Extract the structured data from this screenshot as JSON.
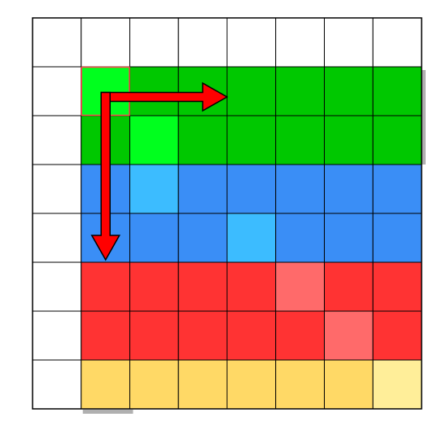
{
  "grid": {
    "rows": 8,
    "cols": 8,
    "cells": [
      [
        "white",
        "white",
        "white",
        "white",
        "white",
        "white",
        "white",
        "white"
      ],
      [
        "white",
        "green-bright",
        "green",
        "green",
        "green",
        "green",
        "green",
        "green"
      ],
      [
        "white",
        "green",
        "green-bright",
        "green",
        "green",
        "green",
        "green",
        "green"
      ],
      [
        "white",
        "blue",
        "blue-light",
        "blue",
        "blue",
        "blue",
        "blue",
        "blue"
      ],
      [
        "white",
        "blue",
        "blue",
        "blue",
        "blue-light",
        "blue",
        "blue",
        "blue"
      ],
      [
        "white",
        "red",
        "red",
        "red",
        "red",
        "red-light",
        "red",
        "red"
      ],
      [
        "white",
        "red",
        "red",
        "red",
        "red",
        "red",
        "red-light",
        "red"
      ],
      [
        "white",
        "yellow",
        "yellow",
        "yellow",
        "yellow",
        "yellow",
        "yellow",
        "yellow-light"
      ]
    ]
  },
  "palette": {
    "white": "#ffffff",
    "green": "#00c800",
    "green-bright": "#00ff1e",
    "blue": "#3a8ef6",
    "blue-light": "#3cbcff",
    "red": "#ff3333",
    "red-light": "#ff6a6a",
    "yellow": "#ffd966",
    "yellow-light": "#ffee99",
    "grid_line": "#000000",
    "arrow": "#ff0000",
    "shadow": "#b0b0b0",
    "highlight_border": "#ff4d4d"
  },
  "arrows": [
    {
      "name": "arrow-right",
      "direction": "right",
      "start_cell": [
        1,
        1
      ],
      "end_cell": [
        1,
        4
      ]
    },
    {
      "name": "arrow-down",
      "direction": "down",
      "start_cell": [
        1,
        1
      ],
      "end_cell": [
        4,
        1
      ]
    }
  ],
  "highlighted_cell": [
    1,
    1
  ]
}
